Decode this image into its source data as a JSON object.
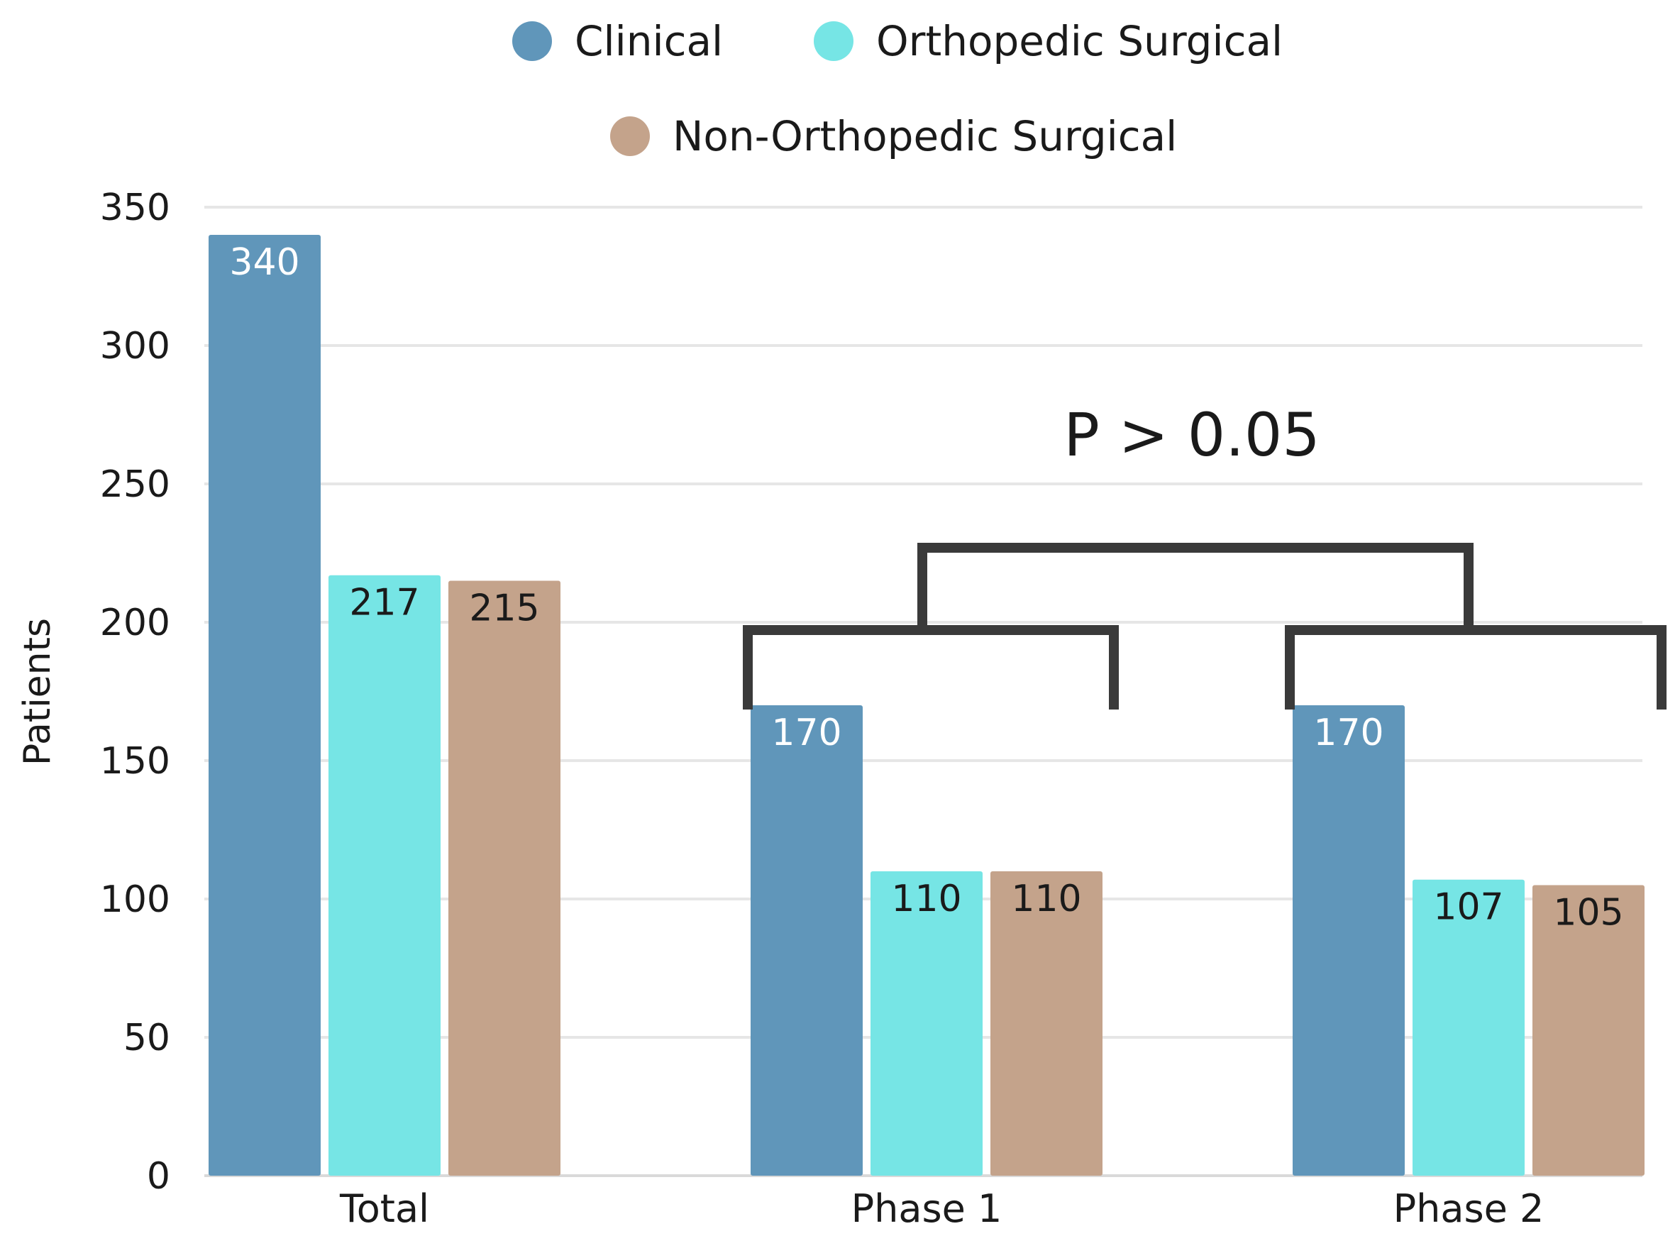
{
  "chart_data": {
    "type": "bar",
    "title": "",
    "xlabel": "",
    "ylabel": "Patients",
    "ylim": [
      0,
      350
    ],
    "yticks": [
      0,
      50,
      100,
      150,
      200,
      250,
      300,
      350
    ],
    "grid": true,
    "legend_position": "top-center",
    "categories": [
      "Total",
      "Phase 1",
      "Phase 2"
    ],
    "series": [
      {
        "name": "Clinical",
        "color": "#6096BA",
        "label_color": "#ffffff",
        "values": [
          340,
          170,
          170
        ]
      },
      {
        "name": "Orthopedic Surgical",
        "color": "#76E5E5",
        "label_color": "#1a1a1a",
        "values": [
          217,
          110,
          107
        ]
      },
      {
        "name": "Non-Orthopedic Surgical",
        "color": "#C4A38B",
        "label_color": "#1a1a1a",
        "values": [
          215,
          110,
          105
        ]
      }
    ],
    "annotations": [
      {
        "text": "P > 0.05",
        "type": "significance-bracket",
        "between": [
          "Phase 1",
          "Phase 2"
        ]
      }
    ]
  }
}
